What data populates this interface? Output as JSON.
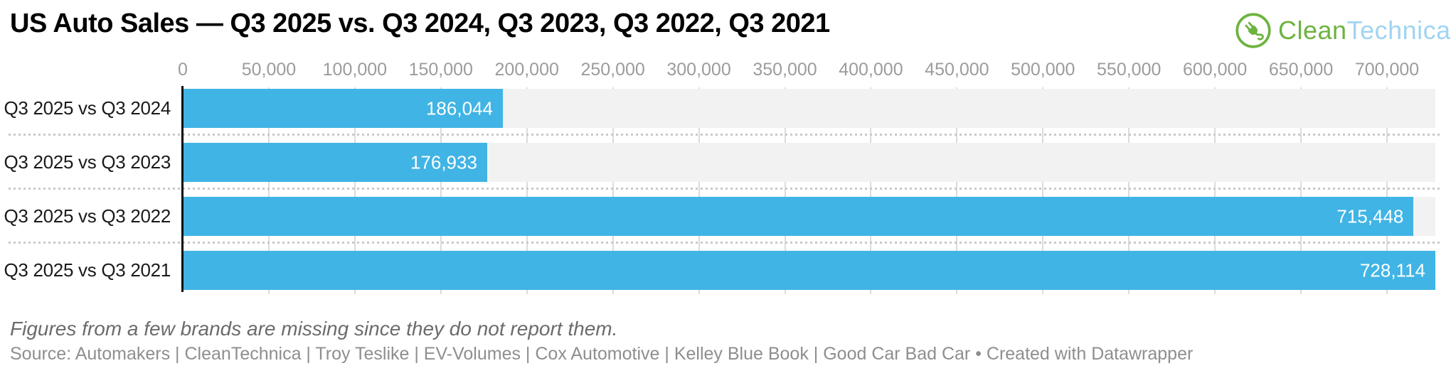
{
  "title": "US Auto Sales — Q3 2025 vs. Q3 2024, Q3 2023, Q3 2022, Q3 2021",
  "logo": {
    "icon": "cleantechnica-plug-icon",
    "text_primary": "Clean",
    "text_secondary": "Technica",
    "color_primary": "#6CB33F",
    "color_secondary": "#A0D4F1"
  },
  "chart_data": {
    "type": "bar",
    "orientation": "horizontal",
    "title": "US Auto Sales — Q3 2025 vs. Q3 2024, Q3 2023, Q3 2022, Q3 2021",
    "categories": [
      "Q3 2025 vs Q3 2024",
      "Q3 2025 vs Q3 2023",
      "Q3 2025 vs Q3 2022",
      "Q3 2025 vs Q3 2021"
    ],
    "values": [
      186044,
      176933,
      715448,
      728114
    ],
    "value_labels": [
      "186,044",
      "176,933",
      "715,448",
      "728,114"
    ],
    "axis": {
      "position": "top",
      "min": 0,
      "max": 728114,
      "tick_step": 50000,
      "tick_values": [
        0,
        50000,
        100000,
        150000,
        200000,
        250000,
        300000,
        350000,
        400000,
        450000,
        500000,
        550000,
        600000,
        650000,
        700000
      ],
      "tick_labels": [
        "0",
        "50,000",
        "100,000",
        "150,000",
        "200,000",
        "250,000",
        "300,000",
        "350,000",
        "400,000",
        "450,000",
        "500,000",
        "550,000",
        "600,000",
        "650,000",
        "700,000"
      ]
    },
    "grid": true,
    "colors": {
      "bar": "#40B4E4",
      "row_track": "#F2F2F2",
      "gridline": "#DBDBDB",
      "zero_line": "#0A0A0A",
      "tick_label": "#9C9C9C",
      "value_label": "#FFFFFF",
      "category_label": "#1A1A1A"
    }
  },
  "note": "Figures from a few brands are missing since they do not report them.",
  "source": "Source: Automakers | CleanTechnica | Troy Teslike | EV-Volumes | Cox Automotive | Kelley Blue Book | Good Car Bad Car • Created with Datawrapper"
}
